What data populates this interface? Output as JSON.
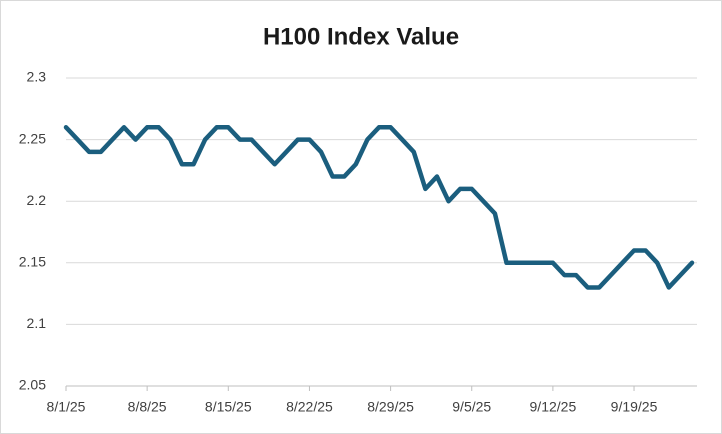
{
  "chart_data": {
    "type": "line",
    "title": "H100 Index Value",
    "categories": [
      "8/1/25",
      null,
      null,
      null,
      null,
      null,
      null,
      "8/8/25",
      null,
      null,
      null,
      null,
      null,
      null,
      "8/15/25",
      null,
      null,
      null,
      null,
      null,
      null,
      "8/22/25",
      null,
      null,
      null,
      null,
      null,
      null,
      "8/29/25",
      null,
      null,
      null,
      null,
      null,
      null,
      "9/5/25",
      null,
      null,
      null,
      null,
      null,
      null,
      "9/12/25",
      null,
      null,
      null,
      null,
      null,
      null,
      "9/19/25",
      null,
      null,
      null,
      null,
      null
    ],
    "values": [
      2.26,
      2.25,
      2.24,
      2.24,
      2.25,
      2.26,
      2.25,
      2.26,
      2.26,
      2.25,
      2.23,
      2.23,
      2.25,
      2.26,
      2.26,
      2.25,
      2.25,
      2.24,
      2.23,
      2.24,
      2.25,
      2.25,
      2.24,
      2.22,
      2.22,
      2.23,
      2.25,
      2.26,
      2.26,
      2.25,
      2.24,
      2.21,
      2.22,
      2.2,
      2.21,
      2.21,
      2.2,
      2.19,
      2.15,
      2.15,
      2.15,
      2.15,
      2.15,
      2.14,
      2.14,
      2.13,
      2.13,
      2.14,
      2.15,
      2.16,
      2.16,
      2.15,
      2.13,
      2.14,
      2.15
    ],
    "color": "#1b5e7e",
    "ylim": [
      2.05,
      2.3
    ],
    "yticks": [
      2.05,
      2.1,
      2.15,
      2.2,
      2.25,
      2.3
    ],
    "grid": true
  }
}
